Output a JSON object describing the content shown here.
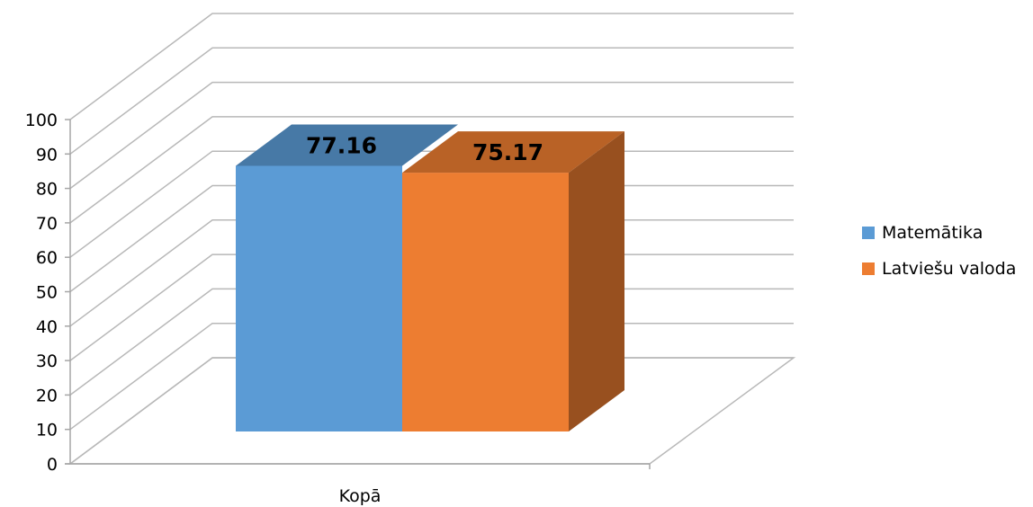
{
  "chart_data": {
    "type": "bar",
    "style": "3d-clustered-column",
    "categories": [
      "Kopā"
    ],
    "series": [
      {
        "name": "Matemātika",
        "values": [
          77.16
        ],
        "color": "#5B9BD5"
      },
      {
        "name": "Latviešu valoda",
        "values": [
          75.17
        ],
        "color": "#ED7D31"
      }
    ],
    "data_labels": [
      "77.16",
      "75.17"
    ],
    "y_ticks": [
      "0",
      "10",
      "20",
      "30",
      "40",
      "50",
      "60",
      "70",
      "80",
      "90",
      "100"
    ],
    "ylim": [
      0,
      100
    ],
    "grid": true,
    "legend_position": "right"
  }
}
